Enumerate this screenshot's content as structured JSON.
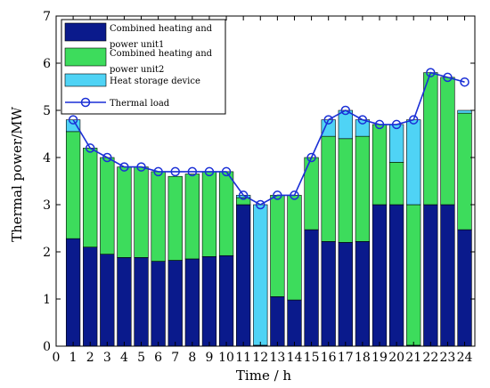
{
  "chart_data": {
    "type": "bar",
    "stacked": true,
    "xlabel": "Time / h",
    "ylabel": "Thermal  power/MW",
    "ylim": [
      0,
      7
    ],
    "xlim": [
      0,
      24.6
    ],
    "yticks": [
      0,
      1,
      2,
      3,
      4,
      5,
      6,
      7
    ],
    "xticks": [
      0,
      1,
      2,
      3,
      4,
      5,
      6,
      7,
      8,
      9,
      10,
      11,
      12,
      13,
      14,
      15,
      16,
      17,
      18,
      19,
      20,
      21,
      22,
      23,
      24
    ],
    "categories": [
      1,
      2,
      3,
      4,
      5,
      6,
      7,
      8,
      9,
      10,
      11,
      12,
      13,
      14,
      15,
      16,
      17,
      18,
      19,
      20,
      21,
      22,
      23,
      24
    ],
    "legend_position": "top-left",
    "series": [
      {
        "name": "Combined heating and power unit1",
        "kind": "bar",
        "color": "#0a1a8c",
        "values": [
          2.28,
          2.1,
          1.95,
          1.88,
          1.88,
          1.8,
          1.82,
          1.85,
          1.9,
          1.92,
          3.0,
          0.02,
          1.05,
          0.98,
          2.47,
          2.22,
          2.2,
          2.22,
          3.0,
          3.0,
          0.02,
          3.0,
          3.0,
          2.47
        ]
      },
      {
        "name": "Combined heating and power unit2",
        "kind": "bar",
        "color": "#3ddc5c",
        "values": [
          2.27,
          2.1,
          2.05,
          1.92,
          1.92,
          1.9,
          1.78,
          1.8,
          1.8,
          1.78,
          0.15,
          0.0,
          2.15,
          2.22,
          1.53,
          2.23,
          2.2,
          2.23,
          1.7,
          0.9,
          2.98,
          2.8,
          2.7,
          2.47
        ]
      },
      {
        "name": "Heat storage device",
        "kind": "bar",
        "color": "#4fd3f5",
        "values": [
          0.25,
          0.0,
          0.0,
          0.0,
          0.0,
          0.0,
          0.0,
          0.0,
          0.0,
          0.0,
          0.05,
          2.98,
          0.0,
          0.0,
          0.0,
          0.35,
          0.6,
          0.35,
          0.0,
          0.8,
          1.8,
          0.0,
          0.0,
          0.06
        ]
      },
      {
        "name": "Thermal load",
        "kind": "line",
        "color": "#1a2fd6",
        "marker": "circle",
        "values": [
          4.8,
          4.2,
          4.0,
          3.8,
          3.8,
          3.7,
          3.7,
          3.7,
          3.7,
          3.7,
          3.2,
          3.0,
          3.2,
          3.2,
          4.0,
          4.8,
          5.0,
          4.8,
          4.7,
          4.7,
          4.8,
          5.8,
          5.7,
          5.6
        ]
      }
    ]
  }
}
